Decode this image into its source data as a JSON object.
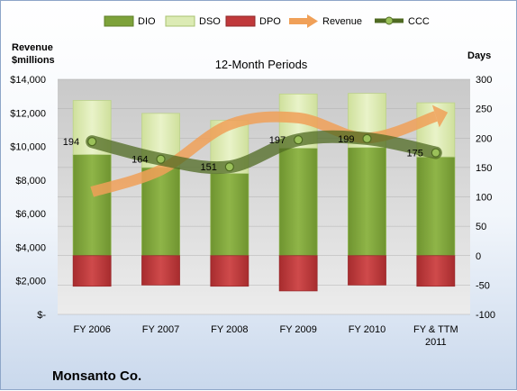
{
  "chart_data": {
    "type": "bar",
    "title": "12-Month Periods",
    "company": "Monsanto Co.",
    "left_axis_label": [
      "Revenue",
      "$millions"
    ],
    "right_axis_label": "Days",
    "left_ticks": [
      "$14,000",
      "$12,000",
      "$10,000",
      "$8,000",
      "$6,000",
      "$4,000",
      "$2,000",
      "$-"
    ],
    "left_ylim": [
      0,
      14000
    ],
    "right_ticks": [
      "300",
      "250",
      "200",
      "150",
      "100",
      "50",
      "0",
      "-50",
      "-100"
    ],
    "right_ylim": [
      -100,
      300
    ],
    "categories": [
      "FY 2006",
      "FY 2007",
      "FY 2008",
      "FY 2009",
      "FY 2010",
      "FY & TTM 2011"
    ],
    "legend_position": "top",
    "series": [
      {
        "name": "DIO",
        "axis": "right",
        "color": "#7da23a",
        "values": [
          172,
          150,
          140,
          183,
          184,
          168
        ]
      },
      {
        "name": "DSO",
        "axis": "right",
        "color": "#dcebb4",
        "values": [
          92,
          92,
          90,
          92,
          92,
          92
        ]
      },
      {
        "name": "DPO",
        "axis": "right",
        "color": "#c0393b",
        "values": [
          -52,
          -50,
          -52,
          -60,
          -50,
          -52
        ]
      },
      {
        "name": "Revenue",
        "axis": "left",
        "color": "#f0a058",
        "values": [
          7300,
          8600,
          11300,
          11700,
          10500,
          11800
        ]
      },
      {
        "name": "CCC",
        "axis": "right",
        "color": "#6d8c36",
        "values": [
          194,
          164,
          151,
          197,
          199,
          175
        ]
      }
    ],
    "ccc_labels": [
      "194",
      "164",
      "151",
      "197",
      "199",
      "175"
    ]
  }
}
